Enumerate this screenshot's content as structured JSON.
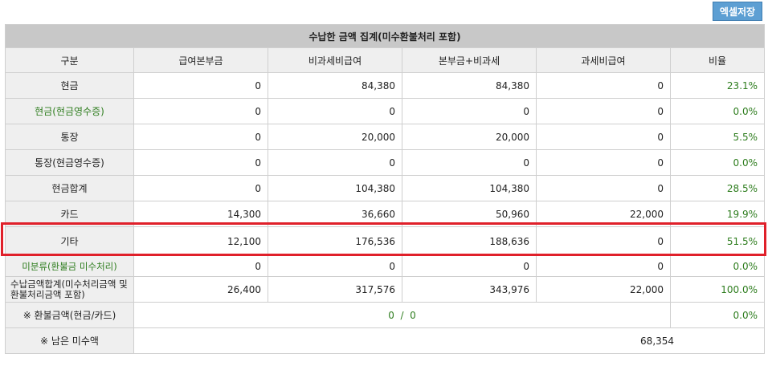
{
  "toolbar": {
    "excel_save_label": "엑셀저장"
  },
  "table": {
    "title": "수납한 금액 집계(미수환불처리 포함)",
    "headers": [
      "구분",
      "급여본부금",
      "비과세비급여",
      "본부금+비과세",
      "과세비급여",
      "비율"
    ],
    "rows": [
      {
        "label": "현금",
        "values": [
          "0",
          "84,380",
          "84,380",
          "0"
        ],
        "ratio": "23.1%"
      },
      {
        "label": "현금(현금영수증)",
        "values": [
          "0",
          "0",
          "0",
          "0"
        ],
        "ratio": "0.0%"
      },
      {
        "label": "통장",
        "values": [
          "0",
          "20,000",
          "20,000",
          "0"
        ],
        "ratio": "5.5%"
      },
      {
        "label": "통장(현금영수증)",
        "values": [
          "0",
          "0",
          "0",
          "0"
        ],
        "ratio": "0.0%"
      },
      {
        "label": "현금합계",
        "values": [
          "0",
          "104,380",
          "104,380",
          "0"
        ],
        "ratio": "28.5%"
      },
      {
        "label": "카드",
        "values": [
          "14,300",
          "36,660",
          "50,960",
          "22,000"
        ],
        "ratio": "19.9%"
      },
      {
        "label": "기타",
        "values": [
          "12,100",
          "176,536",
          "188,636",
          "0"
        ],
        "ratio": "51.5%"
      },
      {
        "label": "미분류(환불금 미수처리)",
        "values": [
          "0",
          "0",
          "0",
          "0"
        ],
        "ratio": "0.0%"
      },
      {
        "label": "수납금액합계(미수처리금액 및 환불처리금액 포함)",
        "values": [
          "26,400",
          "317,576",
          "343,976",
          "22,000"
        ],
        "ratio": "100.0%"
      }
    ],
    "refund": {
      "label": "※ 환불금액(현금/카드)",
      "value": "0  /  0",
      "ratio": "0.0%"
    },
    "remaining": {
      "label": "※ 남은 미수액",
      "value": "68,354"
    }
  },
  "highlight_color": "#e0202a"
}
